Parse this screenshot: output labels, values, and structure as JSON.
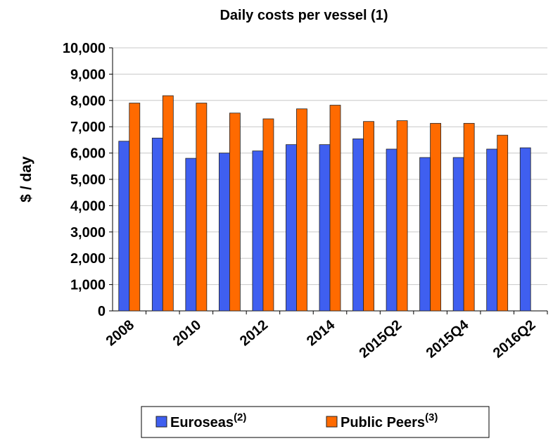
{
  "chart_data": {
    "type": "bar",
    "title": "Daily costs per vessel (1)",
    "y_label": "$ / day",
    "categories": [
      "2008",
      null,
      "2010",
      null,
      "2012",
      null,
      "2014",
      null,
      "2015Q2",
      null,
      "2015Q4",
      null,
      "2016Q2"
    ],
    "series": [
      {
        "name": "Euroseas",
        "superscript": "(2)",
        "color": "#3f5ff0",
        "values": [
          6450,
          6570,
          5800,
          6000,
          6080,
          6320,
          6320,
          6540,
          6150,
          5830,
          5830,
          6150,
          6200
        ]
      },
      {
        "name": "Public Peers",
        "superscript": "(3)",
        "color": "#ff6a00",
        "values": [
          7900,
          8180,
          7900,
          7520,
          7300,
          7680,
          7820,
          7200,
          7230,
          7130,
          7130,
          6680,
          null
        ]
      }
    ],
    "ylim": [
      0,
      10000
    ],
    "yticks": [
      0,
      {
        "value": 1000,
        "label": "1,000"
      },
      {
        "value": 2000,
        "label": "2,000"
      },
      {
        "value": 3000,
        "label": "3,000"
      },
      {
        "value": 4000,
        "label": "4,000"
      },
      {
        "value": 5000,
        "label": "5,000"
      },
      {
        "value": 6000,
        "label": "6,000"
      },
      {
        "value": 7000,
        "label": "7,000"
      },
      {
        "value": 8000,
        "label": "8,000"
      },
      {
        "value": 9000,
        "label": "9,000"
      },
      {
        "value": 10000,
        "label": "10,000"
      }
    ],
    "grid": true
  }
}
